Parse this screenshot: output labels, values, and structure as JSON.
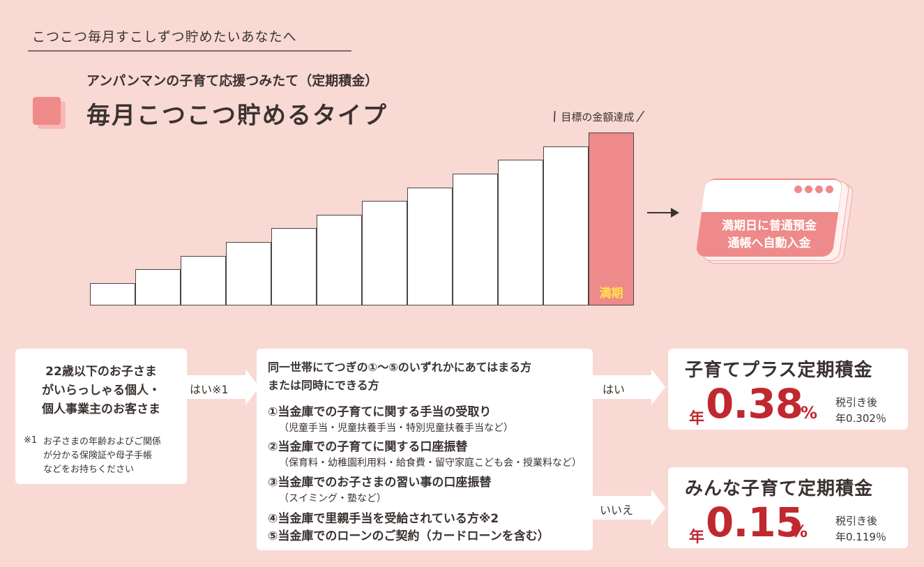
{
  "header": {
    "tagline": "こつこつ毎月すこしずつ貯めたいあなたへ",
    "subtitle": "アンパンマンの子育て応援つみたて（定期積金）",
    "title": "毎月こつこつ貯めるタイプ"
  },
  "chart": {
    "goal_label": "目標の金額達成",
    "final_bar_label": "満期",
    "bar_levels": [
      1,
      2,
      3,
      4,
      5,
      6,
      7,
      8,
      9,
      10,
      11,
      12
    ],
    "colors": {
      "bar": "#ffffff",
      "final_bar": "#ef8a8a",
      "final_label": "#ffe14d"
    }
  },
  "calendar": {
    "line1": "満期日に普通預金",
    "line2": "通帳へ自動入金"
  },
  "eligibility": {
    "line1": "22歳以下のお子さま",
    "line2": "がいらっしゃる個人・",
    "line3": "個人事業主のお客さま",
    "note_mark": "※1",
    "note1": "お子さまの年齢およびご関係",
    "note2": "が分かる保険証や母子手帳",
    "note3": "などをお持ちください",
    "arrow_label": "はい※1"
  },
  "conditions": {
    "intro1": "同一世帯にてつぎの①～⑤のいずれかにあてはまる方",
    "intro2": "または同時にできる方",
    "item1": "①当金庫での子育てに関する手当の受取り",
    "item1_sub": "（児童手当・児童扶養手当・特別児童扶養手当など）",
    "item2": "②当金庫での子育てに関する口座振替",
    "item2_sub": "（保育料・幼稚園利用料・給食費・留守家庭こども会・授業料など）",
    "item3": "③当金庫でのお子さまの習い事の口座振替",
    "item3_sub": "（スイミング・塾など）",
    "item4": "④当金庫で里親手当を受給されている方※2",
    "item5": "⑤当金庫でのローンのご契約（カードローンを含む）",
    "yes_label": "はい",
    "no_label": "いいえ"
  },
  "rates": [
    {
      "name": "子育てプラス定期積金",
      "prefix": "年",
      "value": "0.38",
      "unit": "%",
      "note1": "税引き後",
      "note2": "年0.302％"
    },
    {
      "name": "みんな子育て定期積金",
      "prefix": "年",
      "value": "0.15",
      "unit": "%",
      "note1": "税引き後",
      "note2": "年0.119％"
    }
  ]
}
